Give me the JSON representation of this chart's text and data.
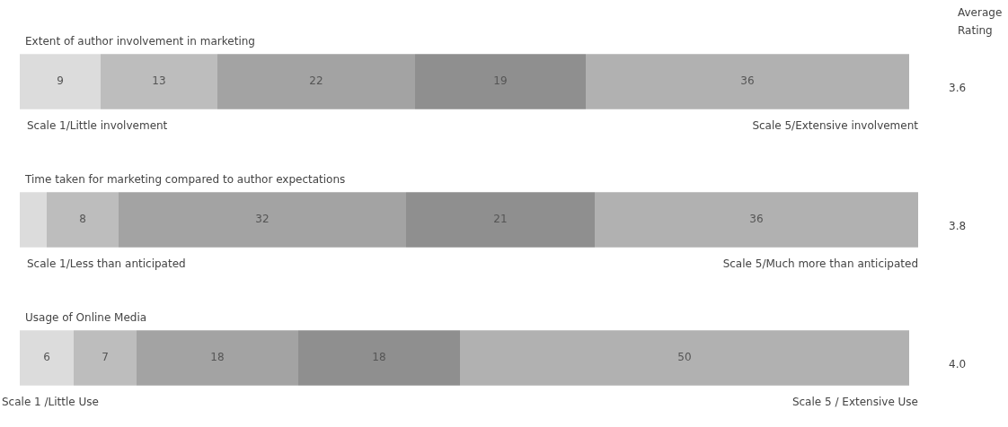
{
  "chart_data": {
    "type": "bar",
    "orientation": "horizontal",
    "stacked": true,
    "categories": [
      "Extent of author involvement in marketing",
      "Time taken for marketing compared to author expectations",
      "Usage of Online Media"
    ],
    "series": [
      {
        "color": "#dcdcdc",
        "values": [
          9,
          3,
          6
        ],
        "value_labels": [
          "9",
          null,
          "6"
        ]
      },
      {
        "color": "#bdbdbd",
        "values": [
          13,
          8,
          7
        ],
        "value_labels": [
          "13",
          "8",
          "7"
        ]
      },
      {
        "color": "#a3a3a3",
        "values": [
          22,
          32,
          18
        ],
        "value_labels": [
          "22",
          "32",
          "18"
        ]
      },
      {
        "color": "#8f8f8f",
        "values": [
          19,
          21,
          18
        ],
        "value_labels": [
          "19",
          "21",
          "18"
        ]
      },
      {
        "color": "#b1b1b1",
        "values": [
          36,
          36,
          50
        ],
        "value_labels": [
          "36",
          "36",
          "50"
        ]
      }
    ],
    "annotations": [
      "Average Rating",
      "Scale 1/Little involvement",
      "Scale 5/Extensive involvement",
      "3.6",
      "Scale 1/Less than anticipated",
      "Scale 5/Much more than anticipated",
      "3.8",
      "Scale 1 /Little Use",
      "Scale 5 / Extensive Use",
      "4.0"
    ]
  }
}
